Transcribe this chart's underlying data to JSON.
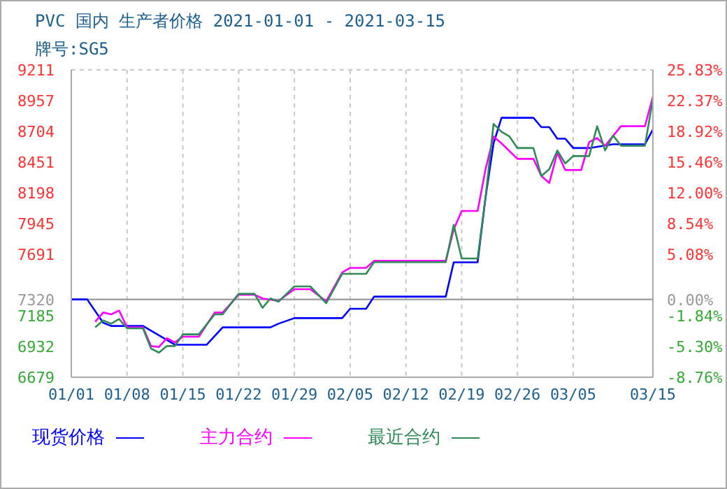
{
  "chart_data": {
    "type": "line",
    "title": "PVC 国内 生产者价格 2021-01-01 - 2021-03-15",
    "subtitle": "牌号:SG5",
    "xlim": [
      "2021-01-01",
      "2021-03-15"
    ],
    "xticks": [
      {
        "value": "2021-01-01",
        "label": "01/01"
      },
      {
        "value": "2021-01-08",
        "label": "01/08"
      },
      {
        "value": "2021-01-15",
        "label": "01/15"
      },
      {
        "value": "2021-01-22",
        "label": "01/22"
      },
      {
        "value": "2021-01-29",
        "label": "01/29"
      },
      {
        "value": "2021-02-05",
        "label": "02/05"
      },
      {
        "value": "2021-02-12",
        "label": "02/12"
      },
      {
        "value": "2021-02-19",
        "label": "02/19"
      },
      {
        "value": "2021-02-26",
        "label": "02/26"
      },
      {
        "value": "2021-03-05",
        "label": "03/05"
      },
      {
        "value": "2021-03-15",
        "label": "03/15"
      }
    ],
    "ylim": [
      6679,
      9211
    ],
    "yticks": [
      6679,
      6932,
      7185,
      7320,
      7691,
      7945,
      8198,
      8451,
      8704,
      8957,
      9211
    ],
    "y2lim": [
      -8.76,
      25.83
    ],
    "y2ticks": [
      {
        "value": -8.76,
        "label": "-8.76%"
      },
      {
        "value": -5.3,
        "label": "-5.30%"
      },
      {
        "value": -1.84,
        "label": "-1.84%"
      },
      {
        "value": 0,
        "label": "0.00%"
      },
      {
        "value": 5.08,
        "label": "5.08%"
      },
      {
        "value": 8.54,
        "label": "8.54%"
      },
      {
        "value": 12,
        "label": "12.00%"
      },
      {
        "value": 15.46,
        "label": "15.46%"
      },
      {
        "value": 18.92,
        "label": "18.92%"
      },
      {
        "value": 22.37,
        "label": "22.37%"
      },
      {
        "value": 25.83,
        "label": "25.83%"
      }
    ],
    "ref_lines": [
      {
        "axis": "y",
        "value": 7320,
        "color": "#999999"
      }
    ],
    "grid": true,
    "legend": "bottom",
    "line_style": "solid",
    "series": [
      {
        "name": "现货价格",
        "color": "#0000ff",
        "x": [
          "2021-01-01",
          "2021-01-03",
          "2021-01-05",
          "2021-01-06",
          "2021-01-10",
          "2021-01-14",
          "2021-01-18",
          "2021-01-20",
          "2021-01-26",
          "2021-01-27",
          "2021-01-29",
          "2021-02-04",
          "2021-02-05",
          "2021-02-07",
          "2021-02-08",
          "2021-02-17",
          "2021-02-18",
          "2021-02-21",
          "2021-02-22",
          "2021-02-23",
          "2021-02-24",
          "2021-02-28",
          "2021-03-01",
          "2021-03-02",
          "2021-03-03",
          "2021-03-04",
          "2021-03-05",
          "2021-03-07",
          "2021-03-10",
          "2021-03-14",
          "2021-03-15"
        ],
        "values": [
          7320,
          7320,
          7128,
          7101,
          7101,
          6947,
          6947,
          7090,
          7090,
          7120,
          7166,
          7166,
          7243,
          7243,
          7343,
          7343,
          7626,
          7626,
          8164,
          8605,
          8816,
          8816,
          8739,
          8739,
          8644,
          8644,
          8567,
          8567,
          8598,
          8598,
          8720
        ]
      },
      {
        "name": "主力合约",
        "color": "#ff00ff",
        "x": [
          "2021-01-04",
          "2021-01-05",
          "2021-01-06",
          "2021-01-07",
          "2021-01-08",
          "2021-01-10",
          "2021-01-11",
          "2021-01-12",
          "2021-01-13",
          "2021-01-14",
          "2021-01-15",
          "2021-01-17",
          "2021-01-19",
          "2021-01-20",
          "2021-01-22",
          "2021-01-24",
          "2021-01-25",
          "2021-01-27",
          "2021-01-29",
          "2021-01-31",
          "2021-02-02",
          "2021-02-04",
          "2021-02-05",
          "2021-02-07",
          "2021-02-08",
          "2021-02-17",
          "2021-02-18",
          "2021-02-19",
          "2021-02-21",
          "2021-02-22",
          "2021-02-23",
          "2021-02-24",
          "2021-02-26",
          "2021-02-28",
          "2021-03-01",
          "2021-03-02",
          "2021-03-03",
          "2021-03-04",
          "2021-03-06",
          "2021-03-07",
          "2021-03-08",
          "2021-03-09",
          "2021-03-11",
          "2021-03-14",
          "2021-03-15"
        ],
        "values": [
          7136,
          7212,
          7197,
          7228,
          7090,
          7090,
          6936,
          6928,
          7001,
          6966,
          7013,
          7013,
          7212,
          7212,
          7358,
          7358,
          7328,
          7308,
          7404,
          7404,
          7305,
          7542,
          7580,
          7580,
          7638,
          7638,
          7896,
          8049,
          8049,
          8394,
          8662,
          8605,
          8478,
          8478,
          8336,
          8279,
          8529,
          8386,
          8386,
          8616,
          8650,
          8586,
          8747,
          8747,
          8990
        ]
      },
      {
        "name": "最近合约",
        "color": "#2e8b57",
        "x": [
          "2021-01-04",
          "2021-01-05",
          "2021-01-06",
          "2021-01-07",
          "2021-01-08",
          "2021-01-10",
          "2021-01-11",
          "2021-01-12",
          "2021-01-13",
          "2021-01-14",
          "2021-01-15",
          "2021-01-17",
          "2021-01-19",
          "2021-01-20",
          "2021-01-22",
          "2021-01-24",
          "2021-01-25",
          "2021-01-26",
          "2021-01-27",
          "2021-01-29",
          "2021-01-31",
          "2021-02-02",
          "2021-02-04",
          "2021-02-07",
          "2021-02-08",
          "2021-02-17",
          "2021-02-18",
          "2021-02-19",
          "2021-02-21",
          "2021-02-22",
          "2021-02-23",
          "2021-02-24",
          "2021-02-25",
          "2021-02-26",
          "2021-02-28",
          "2021-03-01",
          "2021-03-02",
          "2021-03-03",
          "2021-03-04",
          "2021-03-05",
          "2021-03-07",
          "2021-03-08",
          "2021-03-09",
          "2021-03-10",
          "2021-03-11",
          "2021-03-14",
          "2021-03-15"
        ],
        "values": [
          7090,
          7147,
          7120,
          7159,
          7082,
          7082,
          6916,
          6882,
          6936,
          6936,
          7032,
          7032,
          7197,
          7197,
          7366,
          7366,
          7251,
          7328,
          7301,
          7427,
          7427,
          7289,
          7531,
          7531,
          7627,
          7627,
          7934,
          7657,
          7657,
          8164,
          8766,
          8701,
          8662,
          8567,
          8567,
          8336,
          8394,
          8547,
          8440,
          8501,
          8501,
          8747,
          8547,
          8670,
          8586,
          8586,
          8970
        ]
      }
    ]
  }
}
